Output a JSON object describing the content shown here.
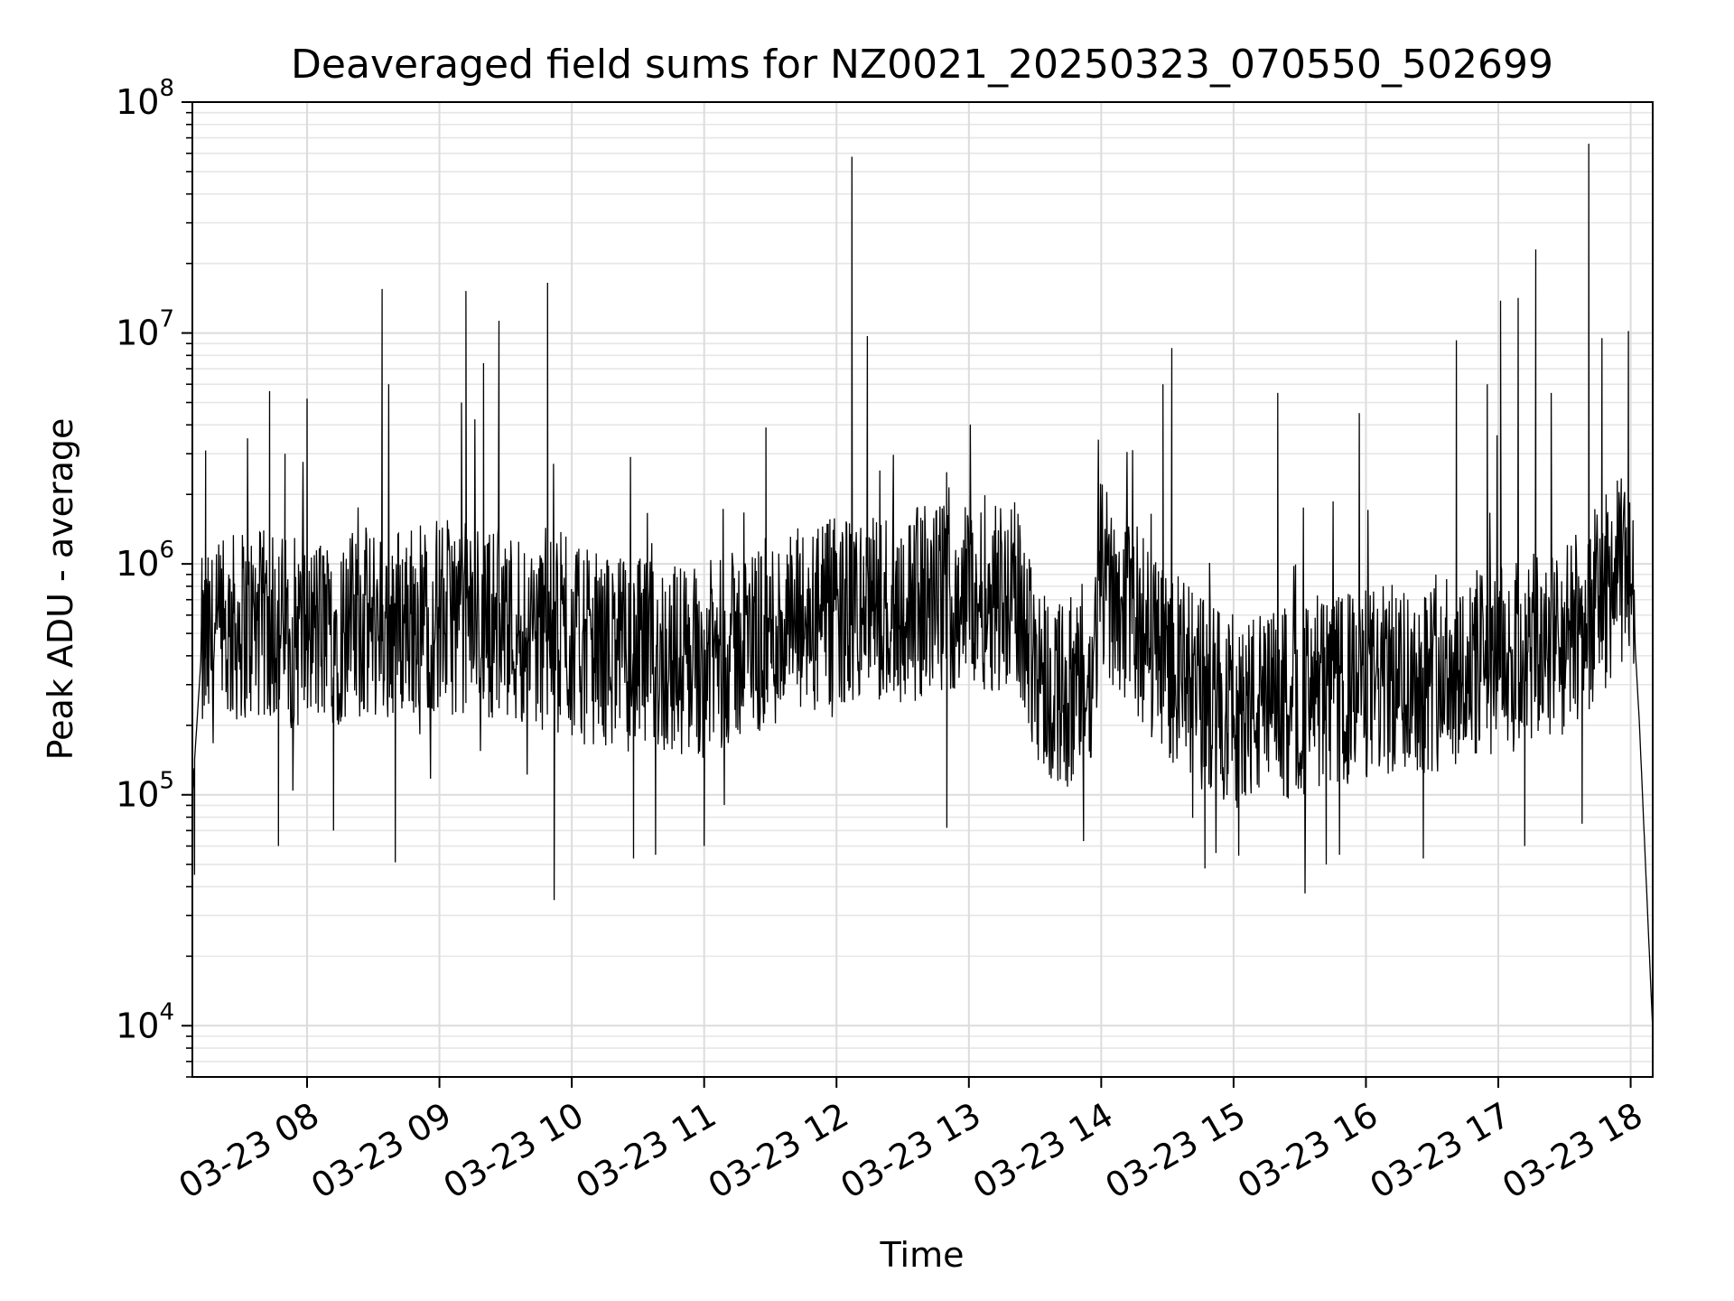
{
  "chart_data": {
    "type": "line",
    "title": "Deaveraged field sums for NZ0021_20250323_070550_502699",
    "xlabel": "Time",
    "ylabel": "Peak ADU - average",
    "yscale": "log",
    "ylim": [
      6000,
      100000000
    ],
    "xlim": [
      "03-23 07:08",
      "03-23 18:10"
    ],
    "grid": true,
    "line_color": "#000000",
    "x_ticks": [
      "03-23 08",
      "03-23 09",
      "03-23 10",
      "03-23 11",
      "03-23 12",
      "03-23 13",
      "03-23 14",
      "03-23 15",
      "03-23 16",
      "03-23 17",
      "03-23 18"
    ],
    "y_ticks": [
      {
        "value": 10000,
        "base": "10",
        "exp": "4"
      },
      {
        "value": 100000,
        "base": "10",
        "exp": "5"
      },
      {
        "value": 1000000,
        "base": "10",
        "exp": "6"
      },
      {
        "value": 10000000,
        "base": "10",
        "exp": "7"
      },
      {
        "value": 100000000,
        "base": "10",
        "exp": "8"
      }
    ],
    "baseline": [
      [
        "03-23 07:08",
        100000
      ],
      [
        "03-23 07:12",
        400000
      ],
      [
        "03-23 07:30",
        550000
      ],
      [
        "03-23 08:00",
        500000
      ],
      [
        "03-23 08:30",
        550000
      ],
      [
        "03-23 09:00",
        600000
      ],
      [
        "03-23 09:30",
        550000
      ],
      [
        "03-23 10:00",
        450000
      ],
      [
        "03-23 10:30",
        400000
      ],
      [
        "03-23 11:00",
        380000
      ],
      [
        "03-23 11:30",
        500000
      ],
      [
        "03-23 12:00",
        600000
      ],
      [
        "03-23 12:30",
        650000
      ],
      [
        "03-23 13:00",
        750000
      ],
      [
        "03-23 13:20",
        750000
      ],
      [
        "03-23 13:35",
        300000
      ],
      [
        "03-23 13:55",
        250000
      ],
      [
        "03-23 14:00",
        900000
      ],
      [
        "03-23 14:20",
        500000
      ],
      [
        "03-23 14:40",
        300000
      ],
      [
        "03-23 15:00",
        230000
      ],
      [
        "03-23 15:30",
        250000
      ],
      [
        "03-23 16:00",
        300000
      ],
      [
        "03-23 16:30",
        330000
      ],
      [
        "03-23 17:00",
        380000
      ],
      [
        "03-23 17:30",
        450000
      ],
      [
        "03-23 17:50",
        800000
      ],
      [
        "03-23 18:00",
        1000000
      ],
      [
        "03-23 18:04",
        200000
      ],
      [
        "03-23 18:10",
        9500
      ]
    ],
    "spikes": [
      [
        "03-23 07:14",
        3100000
      ],
      [
        "03-23 07:33",
        3500000
      ],
      [
        "03-23 07:43",
        5600000
      ],
      [
        "03-23 07:50",
        3000000
      ],
      [
        "03-23 08:00",
        5200000
      ],
      [
        "03-23 08:34",
        15500000
      ],
      [
        "03-23 08:37",
        6000000
      ],
      [
        "03-23 09:10",
        5000000
      ],
      [
        "03-23 09:12",
        15200000
      ],
      [
        "03-23 09:20",
        7400000
      ],
      [
        "03-23 09:27",
        11300000
      ],
      [
        "03-23 09:49",
        16500000
      ],
      [
        "03-23 11:28",
        3900000
      ],
      [
        "03-23 12:07",
        58000000
      ],
      [
        "03-23 12:14",
        9700000
      ],
      [
        "03-23 14:32",
        8600000
      ],
      [
        "03-23 14:28",
        6000000
      ],
      [
        "03-23 15:20",
        5500000
      ],
      [
        "03-23 15:57",
        4500000
      ],
      [
        "03-23 16:41",
        9300000
      ],
      [
        "03-23 16:55",
        6000000
      ],
      [
        "03-23 17:01",
        13800000
      ],
      [
        "03-23 17:09",
        14200000
      ],
      [
        "03-23 17:17",
        23000000
      ],
      [
        "03-23 17:24",
        5500000
      ],
      [
        "03-23 17:41",
        66000000
      ],
      [
        "03-23 17:47",
        9500000
      ],
      [
        "03-23 17:59",
        10200000
      ]
    ],
    "dips": [
      [
        "03-23 07:09",
        45000
      ],
      [
        "03-23 07:47",
        60000
      ],
      [
        "03-23 08:12",
        70000
      ],
      [
        "03-23 08:40",
        51000
      ],
      [
        "03-23 09:52",
        35000
      ],
      [
        "03-23 10:28",
        53000
      ],
      [
        "03-23 10:38",
        55000
      ],
      [
        "03-23 11:00",
        60000
      ],
      [
        "03-23 12:50",
        72000
      ],
      [
        "03-23 13:52",
        63000
      ],
      [
        "03-23 14:47",
        48000
      ],
      [
        "03-23 14:52",
        56000
      ],
      [
        "03-23 15:42",
        50000
      ],
      [
        "03-23 15:48",
        55000
      ],
      [
        "03-23 16:26",
        53000
      ],
      [
        "03-23 17:12",
        60000
      ],
      [
        "03-23 17:38",
        75000
      ]
    ]
  }
}
